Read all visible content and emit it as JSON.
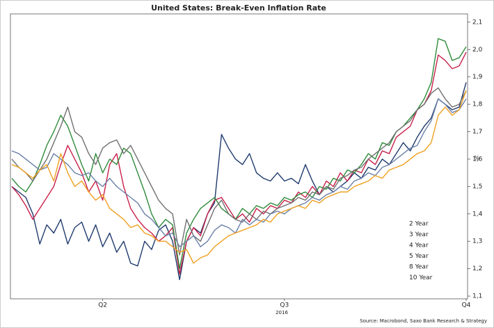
{
  "chart_data": {
    "type": "line",
    "title": "United States: Break-Even Inflation Rate",
    "y_label": "%",
    "year_label": "2016",
    "source": "Source: Macrobond, Saxo Bank Research & Strategy",
    "categories": [
      null,
      null,
      null,
      null,
      null,
      null,
      null,
      null,
      null,
      null,
      null,
      null,
      null,
      "Q2",
      null,
      null,
      null,
      null,
      null,
      null,
      null,
      null,
      null,
      null,
      null,
      null,
      null,
      null,
      null,
      null,
      null,
      null,
      null,
      null,
      null,
      null,
      null,
      null,
      null,
      "Q3",
      null,
      null,
      null,
      null,
      null,
      null,
      null,
      null,
      null,
      null,
      null,
      null,
      null,
      null,
      null,
      null,
      null,
      null,
      null,
      null,
      null,
      null,
      null,
      null,
      null,
      "Q4"
    ],
    "ylim": [
      1.09,
      2.13
    ],
    "yticks": [
      {
        "value": 1.1,
        "label": "1,1"
      },
      {
        "value": 1.2,
        "label": "1,2"
      },
      {
        "value": 1.3,
        "label": "1,3"
      },
      {
        "value": 1.4,
        "label": "1,4"
      },
      {
        "value": 1.5,
        "label": "1,5"
      },
      {
        "value": 1.6,
        "label": "1,6"
      },
      {
        "value": 1.7,
        "label": "1,7"
      },
      {
        "value": 1.8,
        "label": "1,8"
      },
      {
        "value": 1.9,
        "label": "1,9"
      },
      {
        "value": 2.0,
        "label": "2,0"
      },
      {
        "value": 2.1,
        "label": "2,1"
      }
    ],
    "grid": false,
    "series": [
      {
        "name": "2 Year",
        "color": "#1f3a6e",
        "values": [
          1.5,
          1.48,
          1.46,
          1.4,
          1.29,
          1.36,
          1.33,
          1.38,
          1.29,
          1.35,
          1.37,
          1.3,
          1.36,
          1.28,
          1.33,
          1.26,
          1.3,
          1.22,
          1.21,
          1.3,
          1.27,
          1.34,
          1.36,
          1.3,
          1.16,
          1.3,
          1.35,
          1.33,
          1.4,
          1.44,
          1.69,
          1.64,
          1.6,
          1.58,
          1.62,
          1.55,
          1.53,
          1.52,
          1.55,
          1.52,
          1.53,
          1.51,
          1.58,
          1.52,
          1.47,
          1.5,
          1.48,
          1.5,
          1.52,
          1.55,
          1.53,
          1.57,
          1.56,
          1.6,
          1.58,
          1.62,
          1.66,
          1.63,
          1.68,
          1.72,
          1.75,
          1.82,
          1.8,
          1.78,
          1.79,
          1.88
        ]
      },
      {
        "name": "3 Year",
        "color": "#c8204a",
        "values": [
          1.5,
          1.47,
          1.43,
          1.38,
          1.42,
          1.46,
          1.5,
          1.58,
          1.65,
          1.6,
          1.55,
          1.48,
          1.52,
          1.45,
          1.58,
          1.62,
          1.5,
          1.42,
          1.38,
          1.35,
          1.33,
          1.3,
          1.32,
          1.35,
          1.18,
          1.3,
          1.35,
          1.32,
          1.4,
          1.45,
          1.46,
          1.42,
          1.38,
          1.4,
          1.37,
          1.42,
          1.4,
          1.43,
          1.42,
          1.45,
          1.44,
          1.48,
          1.46,
          1.5,
          1.47,
          1.52,
          1.5,
          1.55,
          1.52,
          1.56,
          1.55,
          1.6,
          1.58,
          1.63,
          1.62,
          1.68,
          1.7,
          1.72,
          1.78,
          1.8,
          1.85,
          1.98,
          1.96,
          1.93,
          1.94,
          1.99
        ]
      },
      {
        "name": "4 Year",
        "color": "#2e8b3a",
        "values": [
          1.53,
          1.5,
          1.48,
          1.52,
          1.58,
          1.65,
          1.7,
          1.76,
          1.72,
          1.65,
          1.58,
          1.52,
          1.62,
          1.55,
          1.6,
          1.58,
          1.64,
          1.62,
          1.55,
          1.48,
          1.4,
          1.35,
          1.38,
          1.36,
          1.2,
          1.33,
          1.38,
          1.42,
          1.44,
          1.46,
          1.42,
          1.4,
          1.38,
          1.42,
          1.4,
          1.43,
          1.42,
          1.44,
          1.43,
          1.46,
          1.45,
          1.47,
          1.48,
          1.46,
          1.5,
          1.49,
          1.53,
          1.52,
          1.56,
          1.55,
          1.58,
          1.62,
          1.6,
          1.66,
          1.65,
          1.7,
          1.72,
          1.75,
          1.78,
          1.82,
          1.88,
          2.04,
          2.03,
          1.96,
          1.97,
          2.01
        ]
      },
      {
        "name": "5 Year",
        "color": "#707070",
        "values": [
          1.6,
          1.57,
          1.55,
          1.52,
          1.56,
          1.6,
          1.66,
          1.72,
          1.79,
          1.7,
          1.68,
          1.62,
          1.58,
          1.64,
          1.66,
          1.67,
          1.62,
          1.65,
          1.6,
          1.55,
          1.5,
          1.45,
          1.42,
          1.4,
          1.25,
          1.38,
          1.32,
          1.3,
          1.36,
          1.42,
          1.45,
          1.4,
          1.38,
          1.37,
          1.4,
          1.38,
          1.41,
          1.4,
          1.42,
          1.43,
          1.44,
          1.46,
          1.45,
          1.48,
          1.47,
          1.5,
          1.49,
          1.53,
          1.54,
          1.56,
          1.57,
          1.6,
          1.62,
          1.64,
          1.66,
          1.7,
          1.72,
          1.74,
          1.78,
          1.8,
          1.84,
          1.86,
          1.82,
          1.79,
          1.8,
          1.85
        ]
      },
      {
        "name": "8 Year",
        "color": "#6a80a8",
        "values": [
          1.63,
          1.62,
          1.6,
          1.58,
          1.56,
          1.57,
          1.62,
          1.6,
          1.58,
          1.55,
          1.54,
          1.55,
          1.52,
          1.5,
          1.53,
          1.5,
          1.48,
          1.46,
          1.44,
          1.4,
          1.38,
          1.35,
          1.32,
          1.33,
          1.28,
          1.3,
          1.32,
          1.28,
          1.3,
          1.34,
          1.36,
          1.35,
          1.33,
          1.38,
          1.36,
          1.38,
          1.37,
          1.4,
          1.41,
          1.4,
          1.42,
          1.43,
          1.44,
          1.46,
          1.45,
          1.47,
          1.48,
          1.5,
          1.49,
          1.52,
          1.53,
          1.55,
          1.54,
          1.57,
          1.58,
          1.6,
          1.62,
          1.64,
          1.65,
          1.7,
          1.74,
          1.82,
          1.8,
          1.77,
          1.78,
          1.82
        ]
      },
      {
        "name": "10 Year",
        "color": "#f0a020",
        "values": [
          1.58,
          1.57,
          1.55,
          1.53,
          1.56,
          1.58,
          1.52,
          1.62,
          1.55,
          1.5,
          1.52,
          1.48,
          1.45,
          1.47,
          1.42,
          1.4,
          1.38,
          1.35,
          1.36,
          1.33,
          1.32,
          1.3,
          1.3,
          1.28,
          1.26,
          1.27,
          1.22,
          1.24,
          1.25,
          1.28,
          1.3,
          1.32,
          1.33,
          1.34,
          1.35,
          1.36,
          1.38,
          1.37,
          1.4,
          1.41,
          1.42,
          1.43,
          1.42,
          1.45,
          1.44,
          1.46,
          1.47,
          1.48,
          1.48,
          1.5,
          1.51,
          1.52,
          1.54,
          1.53,
          1.56,
          1.57,
          1.58,
          1.6,
          1.62,
          1.63,
          1.66,
          1.76,
          1.79,
          1.76,
          1.78,
          1.85
        ]
      }
    ]
  }
}
